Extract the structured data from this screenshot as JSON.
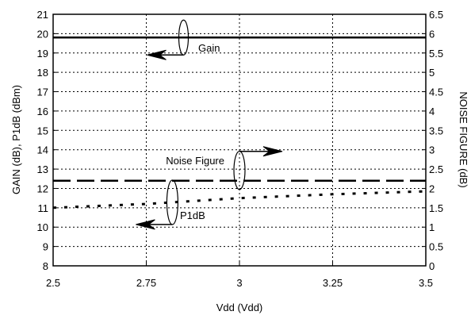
{
  "chart_data": {
    "type": "line",
    "x": [
      2.5,
      2.75,
      3.0,
      3.25,
      3.5
    ],
    "xlabel": "Vdd (Vdd)",
    "xlim": [
      2.5,
      3.5
    ],
    "xticks": [
      "2.5",
      "2.75",
      "3",
      "3.25",
      "3.5"
    ],
    "ylabel": "GAIN (dB), P1dB (dBm)",
    "ylim": [
      8,
      21
    ],
    "yticks": [
      "8",
      "9",
      "10",
      "11",
      "12",
      "13",
      "14",
      "15",
      "16",
      "17",
      "18",
      "19",
      "20",
      "21"
    ],
    "y2label": "NOISE FIGURE (dB)",
    "y2lim": [
      0,
      6.5
    ],
    "y2ticks": [
      "0",
      "0.5",
      "1",
      "1.5",
      "2",
      "2.5",
      "3",
      "3.5",
      "4",
      "4.5",
      "5",
      "5.5",
      "6",
      "6.5"
    ],
    "grid": true,
    "series": [
      {
        "name": "Gain",
        "axis": "left",
        "style": "solid",
        "x": [
          2.5,
          2.75,
          3.0,
          3.25,
          3.5
        ],
        "values": [
          19.8,
          19.8,
          19.8,
          19.8,
          19.8
        ]
      },
      {
        "name": "Noise Figure",
        "axis": "right",
        "style": "dashed",
        "x": [
          2.5,
          2.75,
          3.0,
          3.25,
          3.5
        ],
        "values": [
          2.2,
          2.2,
          2.2,
          2.2,
          2.2
        ]
      },
      {
        "name": "P1dB",
        "axis": "left",
        "style": "dotted",
        "x": [
          2.5,
          2.75,
          3.0,
          3.25,
          3.5
        ],
        "values": [
          11.0,
          11.2,
          11.5,
          11.7,
          11.85
        ]
      }
    ],
    "annotations": [
      {
        "text": "Gain",
        "series": "Gain",
        "arrow": "left"
      },
      {
        "text": "Noise Figure",
        "series": "Noise Figure",
        "arrow": "right"
      },
      {
        "text": "P1dB",
        "series": "P1dB",
        "arrow": "left"
      }
    ]
  }
}
